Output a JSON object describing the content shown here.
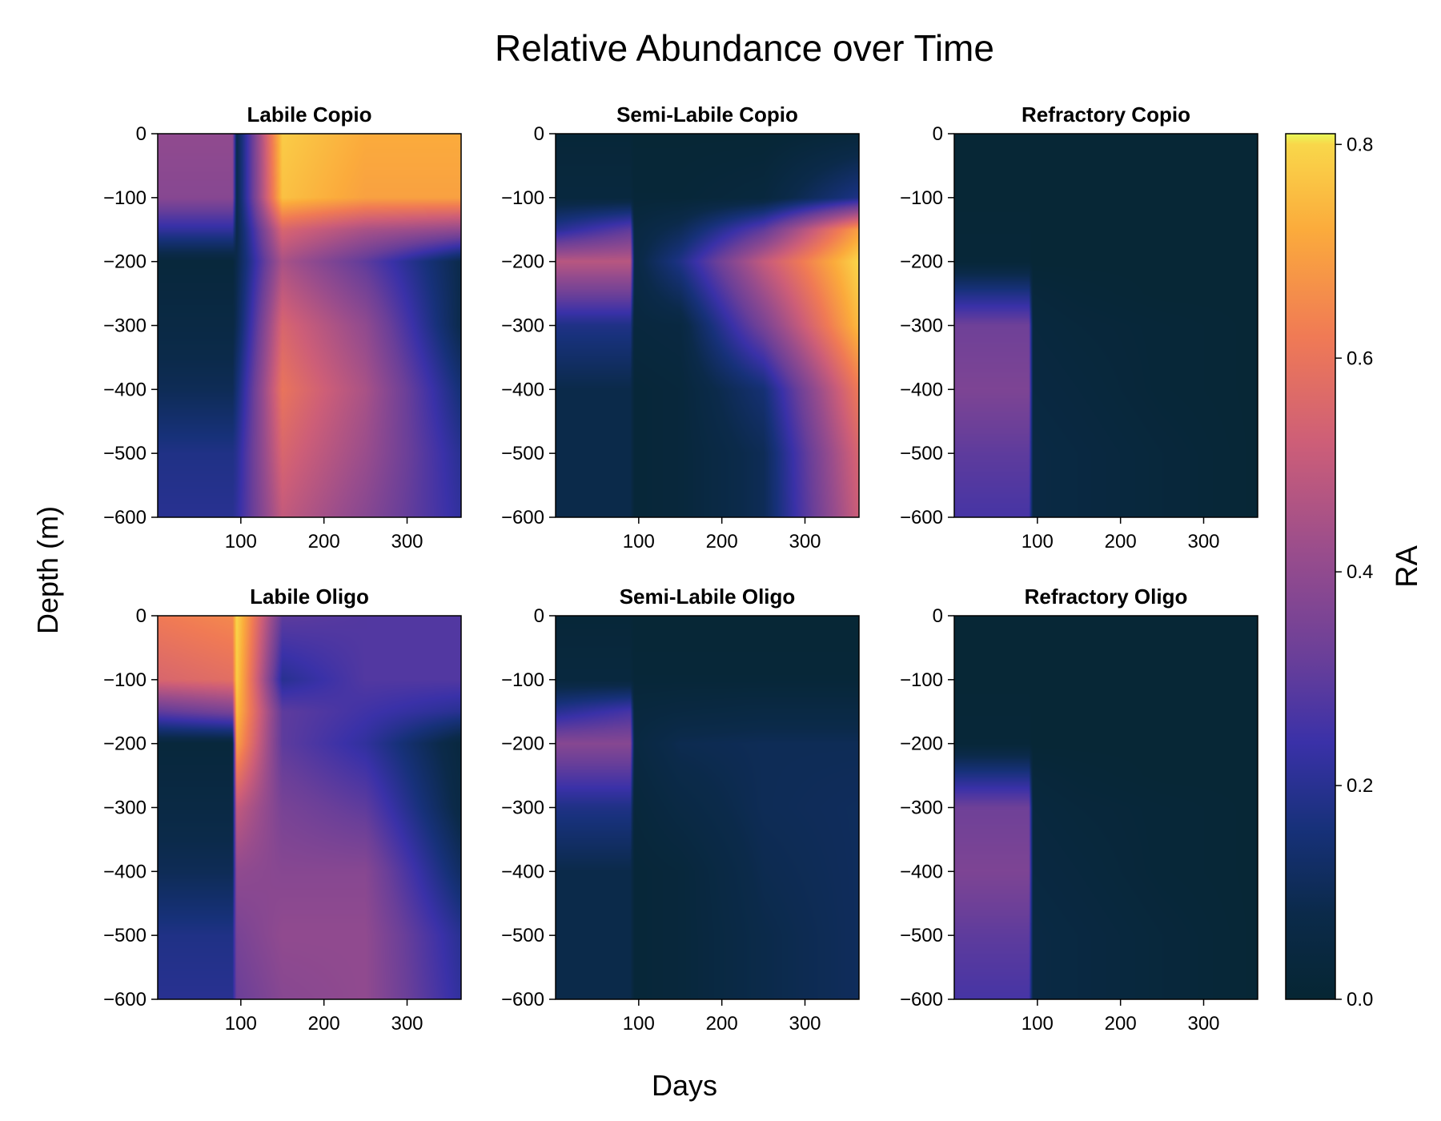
{
  "chart_data": {
    "type": "heatmap",
    "title": "Relative Abundance over Time",
    "xlabel": "Days",
    "ylabel": "Depth (m)",
    "xlim": [
      0,
      365
    ],
    "ylim": [
      -600,
      0
    ],
    "xticks": [
      100,
      200,
      300
    ],
    "yticks": [
      0,
      -100,
      -200,
      -300,
      -400,
      -500,
      -600
    ],
    "layout": "2x3 grid with shared colorbar on right",
    "colorbar": {
      "label": "RA",
      "range": [
        0,
        0.81
      ],
      "ticks": [
        0.0,
        0.2,
        0.4,
        0.6,
        0.8
      ],
      "colormap": "thermal",
      "stops": [
        [
          0.0,
          "#062633"
        ],
        [
          0.08,
          "#0b2a4a"
        ],
        [
          0.16,
          "#17317a"
        ],
        [
          0.24,
          "#3a31a8"
        ],
        [
          0.32,
          "#6a3f99"
        ],
        [
          0.42,
          "#9a4d8c"
        ],
        [
          0.52,
          "#cd5e78"
        ],
        [
          0.62,
          "#f07a55"
        ],
        [
          0.72,
          "#fbab3c"
        ],
        [
          0.8,
          "#f9d74a"
        ],
        [
          0.81,
          "#e8f958"
        ]
      ]
    },
    "panels": [
      {
        "name": "Labile Copio",
        "depth_levels": [
          0,
          -100,
          -150,
          -200,
          -300,
          -400,
          -500,
          -600
        ],
        "day_levels": [
          0,
          90,
          95,
          150,
          250,
          365
        ],
        "values": [
          [
            0.4,
            0.4,
            0.08,
            0.78,
            0.72,
            0.72
          ],
          [
            0.38,
            0.38,
            0.08,
            0.76,
            0.7,
            0.7
          ],
          [
            0.22,
            0.22,
            0.08,
            0.55,
            0.45,
            0.4
          ],
          [
            0.03,
            0.03,
            0.08,
            0.45,
            0.3,
            0.08
          ],
          [
            0.06,
            0.06,
            0.1,
            0.55,
            0.4,
            0.08
          ],
          [
            0.1,
            0.1,
            0.15,
            0.6,
            0.45,
            0.15
          ],
          [
            0.18,
            0.18,
            0.2,
            0.55,
            0.42,
            0.2
          ],
          [
            0.2,
            0.2,
            0.22,
            0.5,
            0.38,
            0.22
          ]
        ]
      },
      {
        "name": "Semi-Labile Copio",
        "depth_levels": [
          0,
          -100,
          -150,
          -200,
          -300,
          -400,
          -500,
          -600
        ],
        "day_levels": [
          0,
          90,
          95,
          150,
          250,
          365
        ],
        "values": [
          [
            0.02,
            0.02,
            0.01,
            0.01,
            0.01,
            0.03
          ],
          [
            0.04,
            0.04,
            0.02,
            0.02,
            0.04,
            0.18
          ],
          [
            0.2,
            0.3,
            0.05,
            0.1,
            0.3,
            0.7
          ],
          [
            0.48,
            0.48,
            0.06,
            0.18,
            0.5,
            0.8
          ],
          [
            0.18,
            0.18,
            0.04,
            0.05,
            0.35,
            0.75
          ],
          [
            0.08,
            0.08,
            0.02,
            0.03,
            0.15,
            0.62
          ],
          [
            0.08,
            0.08,
            0.02,
            0.03,
            0.1,
            0.55
          ],
          [
            0.08,
            0.08,
            0.02,
            0.03,
            0.1,
            0.52
          ]
        ]
      },
      {
        "name": "Refractory Copio",
        "depth_levels": [
          0,
          -100,
          -200,
          -250,
          -300,
          -400,
          -500,
          -600
        ],
        "day_levels": [
          0,
          90,
          95,
          150,
          250,
          365
        ],
        "values": [
          [
            0.01,
            0.01,
            0.01,
            0.01,
            0.01,
            0.01
          ],
          [
            0.01,
            0.01,
            0.01,
            0.01,
            0.01,
            0.01
          ],
          [
            0.02,
            0.02,
            0.01,
            0.01,
            0.01,
            0.01
          ],
          [
            0.18,
            0.18,
            0.03,
            0.02,
            0.01,
            0.01
          ],
          [
            0.33,
            0.33,
            0.04,
            0.03,
            0.02,
            0.01
          ],
          [
            0.36,
            0.36,
            0.05,
            0.04,
            0.02,
            0.01
          ],
          [
            0.3,
            0.3,
            0.06,
            0.05,
            0.03,
            0.01
          ],
          [
            0.26,
            0.26,
            0.06,
            0.05,
            0.03,
            0.01
          ]
        ]
      },
      {
        "name": "Labile Oligo",
        "depth_levels": [
          0,
          -100,
          -150,
          -200,
          -300,
          -400,
          -500,
          -600
        ],
        "day_levels": [
          0,
          90,
          95,
          150,
          250,
          365
        ],
        "values": [
          [
            0.62,
            0.65,
            0.8,
            0.3,
            0.28,
            0.28
          ],
          [
            0.55,
            0.58,
            0.78,
            0.2,
            0.28,
            0.28
          ],
          [
            0.3,
            0.35,
            0.75,
            0.3,
            0.25,
            0.2
          ],
          [
            0.03,
            0.03,
            0.7,
            0.3,
            0.22,
            0.04
          ],
          [
            0.06,
            0.06,
            0.5,
            0.35,
            0.3,
            0.06
          ],
          [
            0.1,
            0.1,
            0.4,
            0.38,
            0.38,
            0.12
          ],
          [
            0.18,
            0.18,
            0.35,
            0.4,
            0.4,
            0.2
          ],
          [
            0.2,
            0.2,
            0.32,
            0.38,
            0.4,
            0.22
          ]
        ]
      },
      {
        "name": "Semi-Labile Oligo",
        "depth_levels": [
          0,
          -100,
          -150,
          -200,
          -300,
          -400,
          -500,
          -600
        ],
        "day_levels": [
          0,
          90,
          95,
          150,
          250,
          365
        ],
        "values": [
          [
            0.02,
            0.02,
            0.01,
            0.01,
            0.01,
            0.01
          ],
          [
            0.04,
            0.04,
            0.02,
            0.02,
            0.02,
            0.02
          ],
          [
            0.2,
            0.26,
            0.04,
            0.05,
            0.06,
            0.06
          ],
          [
            0.38,
            0.38,
            0.05,
            0.09,
            0.1,
            0.1
          ],
          [
            0.18,
            0.18,
            0.03,
            0.06,
            0.1,
            0.11
          ],
          [
            0.08,
            0.08,
            0.02,
            0.03,
            0.09,
            0.11
          ],
          [
            0.08,
            0.08,
            0.02,
            0.03,
            0.08,
            0.11
          ],
          [
            0.08,
            0.08,
            0.02,
            0.03,
            0.08,
            0.11
          ]
        ]
      },
      {
        "name": "Refractory Oligo",
        "depth_levels": [
          0,
          -100,
          -200,
          -250,
          -300,
          -400,
          -500,
          -600
        ],
        "day_levels": [
          0,
          90,
          95,
          150,
          250,
          365
        ],
        "values": [
          [
            0.01,
            0.01,
            0.01,
            0.01,
            0.01,
            0.01
          ],
          [
            0.01,
            0.01,
            0.01,
            0.01,
            0.01,
            0.01
          ],
          [
            0.02,
            0.02,
            0.01,
            0.01,
            0.01,
            0.01
          ],
          [
            0.18,
            0.18,
            0.03,
            0.02,
            0.01,
            0.01
          ],
          [
            0.33,
            0.33,
            0.04,
            0.03,
            0.02,
            0.01
          ],
          [
            0.36,
            0.36,
            0.05,
            0.04,
            0.02,
            0.01
          ],
          [
            0.3,
            0.3,
            0.06,
            0.05,
            0.03,
            0.01
          ],
          [
            0.26,
            0.26,
            0.06,
            0.05,
            0.03,
            0.01
          ]
        ]
      }
    ]
  }
}
